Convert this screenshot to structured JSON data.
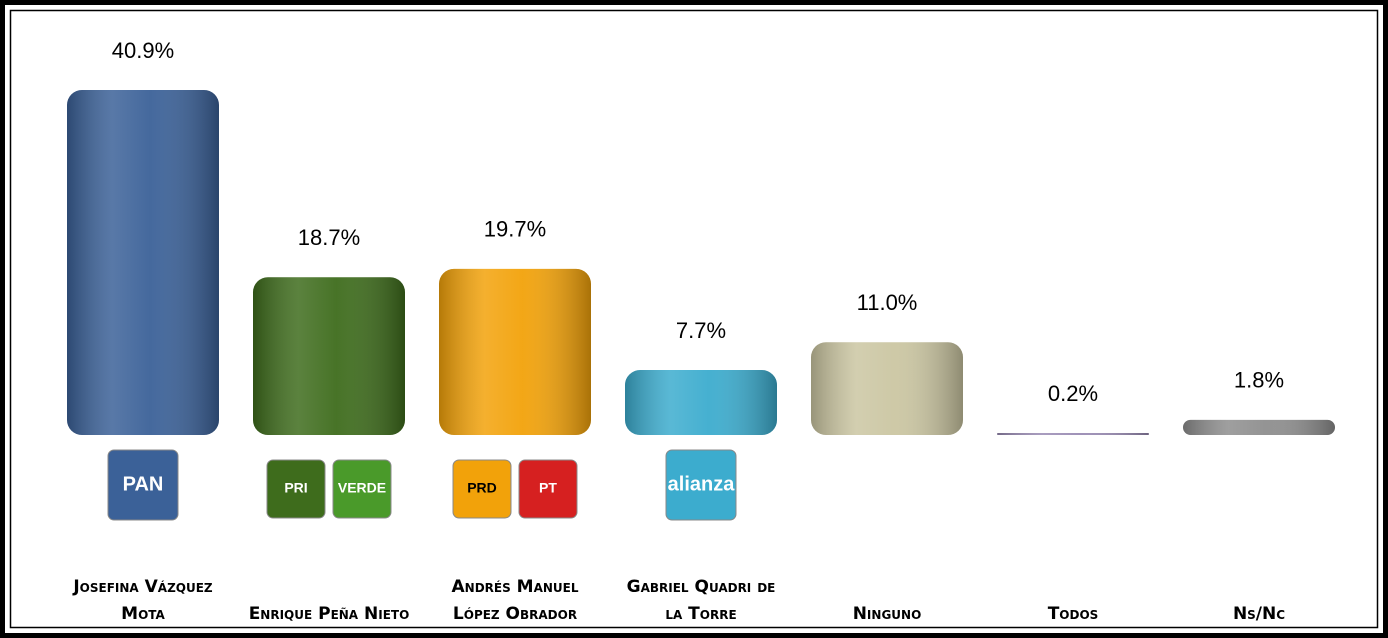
{
  "chart_data": {
    "type": "bar",
    "categories": [
      "Josefina Vázquez Mota",
      "Enrique Peña Nieto",
      "Andrés Manuel López Obrador",
      "Gabriel Quadri de la Torre",
      "Ninguno",
      "Todos",
      "Ns/Nc"
    ],
    "values": [
      40.9,
      18.7,
      19.7,
      7.7,
      11.0,
      0.2,
      1.8
    ],
    "value_labels": [
      "40.9%",
      "18.7%",
      "19.7%",
      "7.7%",
      "11.0%",
      "0.2%",
      "1.8%"
    ],
    "colors": [
      "#3b6198",
      "#3e6c1c",
      "#f2a20a",
      "#3cacce",
      "#cbc6a2",
      "#9a8cb4",
      "#8e8e8e"
    ],
    "logos": [
      [
        "PAN"
      ],
      [
        "PRI",
        "VERDE"
      ],
      [
        "PRD",
        "PT"
      ],
      [
        "alianza"
      ],
      [],
      [],
      []
    ]
  }
}
